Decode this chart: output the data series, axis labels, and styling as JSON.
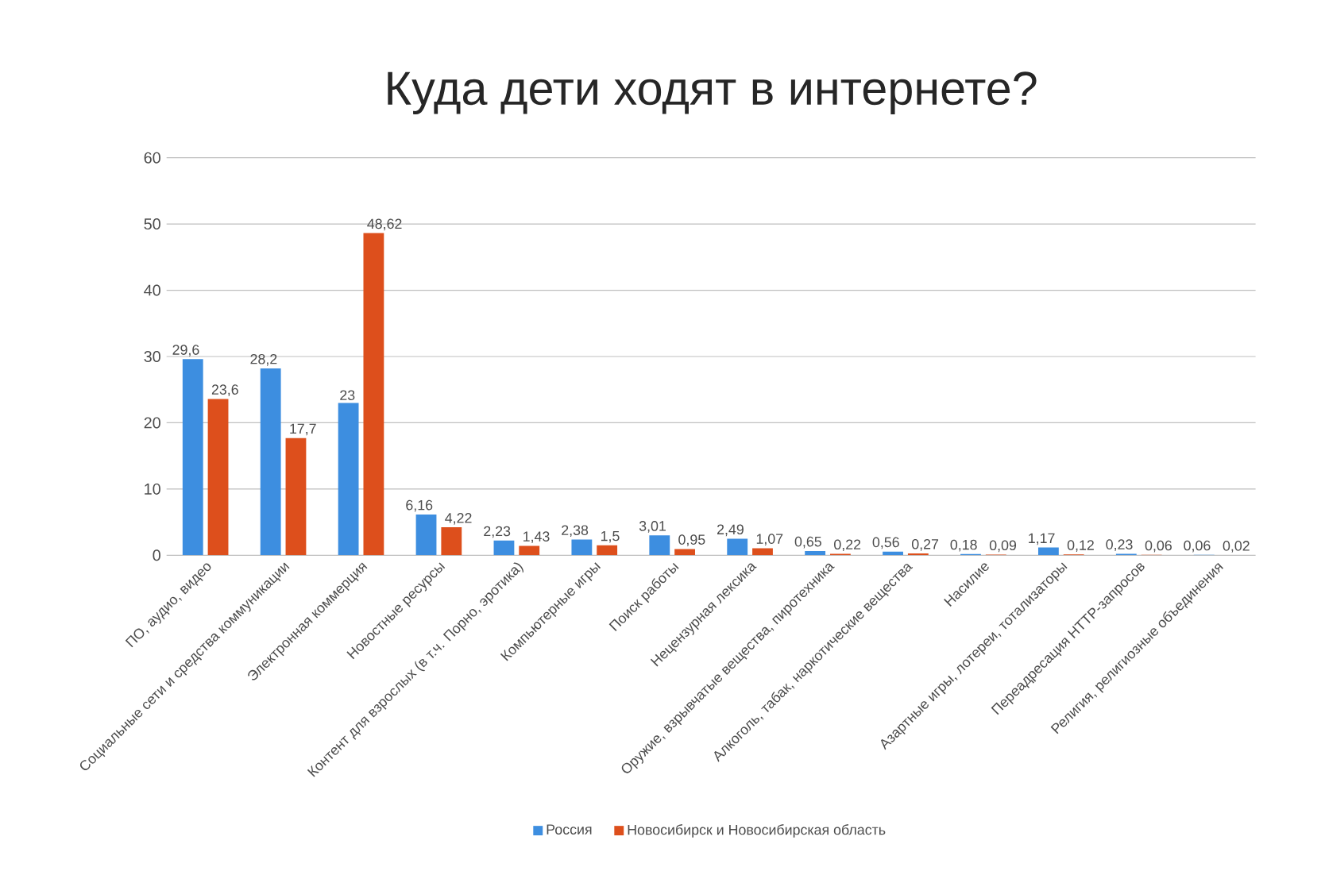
{
  "chart_data": {
    "type": "bar",
    "title": "Куда дети ходят в интернете?",
    "categories": [
      "ПО, аудио, видео",
      "Социальные сети и средства коммуникации",
      "Электронная коммерция",
      "Новостные ресурсы",
      "Контент для взрослых (в т.ч. Порно, эротика)",
      "Компьютерные игры",
      "Поиск работы",
      "Нецензурная лексика",
      "Оружие, взрывчатые вещества, пиротехника",
      "Алкоголь, табак, наркотические вещества",
      "Насилие",
      "Азартные игры, лотереи, тотализаторы",
      "Переадресация HTTP-запросов",
      "Религия, религиозные объединения"
    ],
    "series": [
      {
        "name": "Россия",
        "color": "#3d8ee0",
        "values": [
          29.6,
          28.2,
          23,
          6.16,
          2.23,
          2.38,
          3.01,
          2.49,
          0.65,
          0.56,
          0.18,
          1.17,
          0.23,
          0.06
        ],
        "value_labels": [
          "29,6",
          "28,2",
          "23",
          "6,16",
          "2,23",
          "2,38",
          "3,01",
          "2,49",
          "0,65",
          "0,56",
          "0,18",
          "1,17",
          "0,23",
          "0,06"
        ]
      },
      {
        "name": "Новосибирск и Новосибирская область",
        "color": "#dd4f1c",
        "values": [
          23.6,
          17.7,
          48.62,
          4.22,
          1.43,
          1.5,
          0.95,
          1.07,
          0.22,
          0.27,
          0.09,
          0.12,
          0.06,
          0.02
        ],
        "value_labels": [
          "23,6",
          "17,7",
          "48,62",
          "4,22",
          "1,43",
          "1,5",
          "0,95",
          "1,07",
          "0,22",
          "0,27",
          "0,09",
          "0,12",
          "0,06",
          "0,02"
        ]
      }
    ],
    "ylim": [
      0,
      60
    ],
    "yticks": [
      0,
      10,
      20,
      30,
      40,
      50,
      60
    ],
    "grid": "y",
    "legend": "bottom"
  }
}
